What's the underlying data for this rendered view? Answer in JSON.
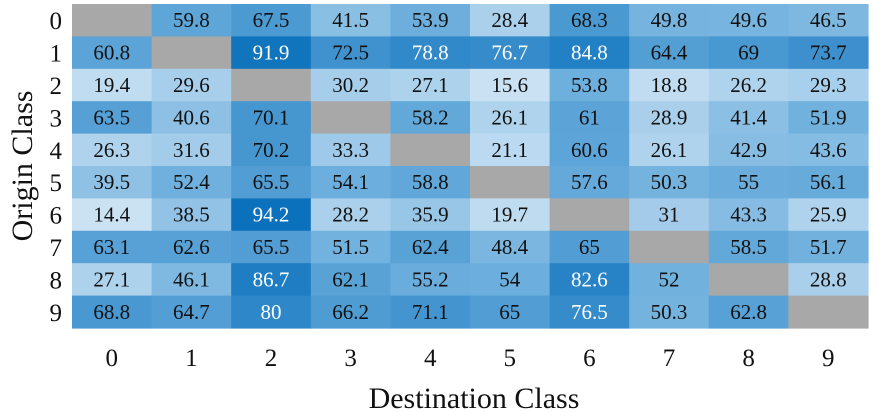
{
  "chart_data": {
    "type": "heatmap",
    "xlabel": "Destination Class",
    "ylabel": "Origin Class",
    "x_ticks": [
      "0",
      "1",
      "2",
      "3",
      "4",
      "5",
      "6",
      "7",
      "8",
      "9"
    ],
    "y_ticks": [
      "0",
      "1",
      "2",
      "3",
      "4",
      "5",
      "6",
      "7",
      "8",
      "9"
    ],
    "values": [
      [
        null,
        59.8,
        67.5,
        41.5,
        53.9,
        28.4,
        68.3,
        49.8,
        49.6,
        46.5
      ],
      [
        60.8,
        null,
        91.9,
        72.5,
        78.8,
        76.7,
        84.8,
        64.4,
        69,
        73.7
      ],
      [
        19.4,
        29.6,
        null,
        30.2,
        27.1,
        15.6,
        53.8,
        18.8,
        26.2,
        29.3
      ],
      [
        63.5,
        40.6,
        70.1,
        null,
        58.2,
        26.1,
        61,
        28.9,
        41.4,
        51.9
      ],
      [
        26.3,
        31.6,
        70.2,
        33.3,
        null,
        21.1,
        60.6,
        26.1,
        42.9,
        43.6
      ],
      [
        39.5,
        52.4,
        65.5,
        54.1,
        58.8,
        null,
        57.6,
        50.3,
        55,
        56.1
      ],
      [
        14.4,
        38.5,
        94.2,
        28.2,
        35.9,
        19.7,
        null,
        31,
        43.3,
        25.9
      ],
      [
        63.1,
        62.6,
        65.5,
        51.5,
        62.4,
        48.4,
        65,
        null,
        58.5,
        51.7
      ],
      [
        27.1,
        46.1,
        86.7,
        62.1,
        55.2,
        54,
        82.6,
        52,
        null,
        28.8
      ],
      [
        68.8,
        64.7,
        80,
        66.2,
        71.1,
        65,
        76.5,
        50.3,
        62.8,
        null
      ]
    ],
    "colors": {
      "low": "#d6e8f6",
      "mid": "#6aaddc",
      "high": "#0a70bc",
      "missing": "#a8a8a8",
      "text_dark": "#111111",
      "text_light": "#ffffff"
    }
  }
}
